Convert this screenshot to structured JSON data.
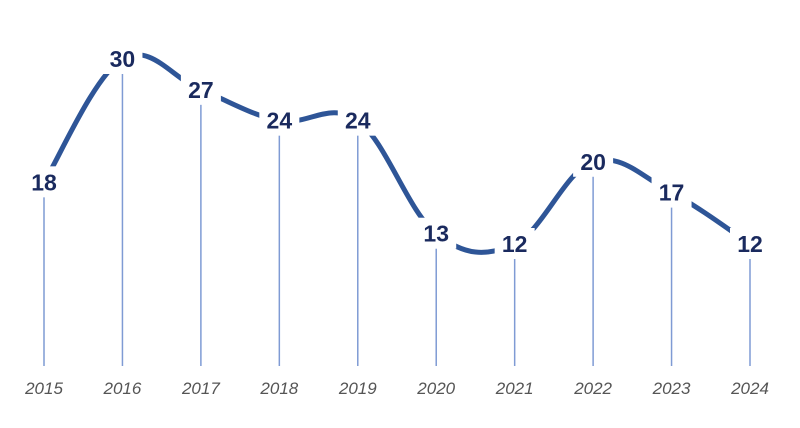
{
  "chart_data": {
    "type": "line",
    "title": "",
    "xlabel": "",
    "ylabel": "",
    "categories": [
      "2015",
      "2016",
      "2017",
      "2018",
      "2019",
      "2020",
      "2021",
      "2022",
      "2023",
      "2024"
    ],
    "values": [
      18,
      30,
      27,
      24,
      24,
      13,
      12,
      20,
      17,
      12
    ],
    "ylim": [
      0,
      30
    ],
    "smooth": true,
    "grid": false,
    "data_labels": true,
    "drop_lines": true,
    "colors": {
      "line": "#2e5597",
      "drop_line": "#7f9bd4",
      "value_label": "#1a2a5e",
      "axis_label": "#555555"
    }
  }
}
